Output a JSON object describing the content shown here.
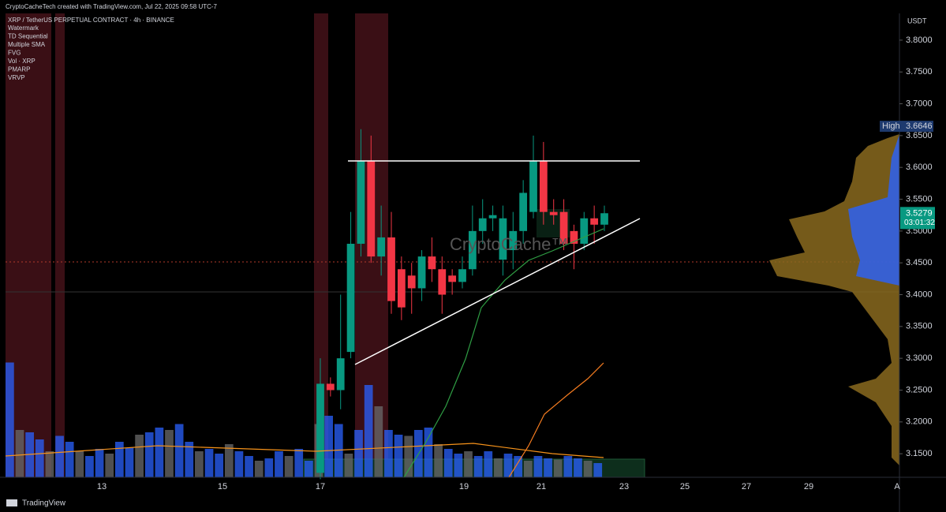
{
  "header": {
    "credit": "CryptoCacheTech created with TradingView.com, Jul 22, 2025 09:58 UTC-7"
  },
  "footer": {
    "brand": "TradingView"
  },
  "chart_data": {
    "type": "candlestick",
    "title": "XRP / TetherUS PERPETUAL CONTRACT · 4h · BINANCE",
    "indicators": [
      "Watermark",
      "TD Sequential",
      "Multiple SMA",
      "FVG",
      "Vol · XRP",
      "PMARP",
      "VRVP"
    ],
    "watermark": "CryptoCache™",
    "currency": "USDT",
    "up_color": "#089981",
    "down_color": "#f23645",
    "candles": {
      "open": [
        3.12,
        3.26,
        3.25,
        3.31,
        3.48,
        3.61,
        3.46,
        3.49,
        3.44,
        3.43,
        3.41,
        3.46,
        3.44,
        3.43,
        3.42,
        3.44,
        3.5,
        3.52,
        3.455,
        3.47,
        3.5,
        3.53,
        3.61,
        3.53,
        3.53,
        3.5,
        3.48,
        3.52,
        3.51
      ],
      "high": [
        3.3,
        3.27,
        3.4,
        3.53,
        3.66,
        3.65,
        3.54,
        3.53,
        3.46,
        3.45,
        3.47,
        3.49,
        3.46,
        3.44,
        3.46,
        3.54,
        3.55,
        3.54,
        3.54,
        3.53,
        3.58,
        3.65,
        3.64,
        3.55,
        3.55,
        3.51,
        3.53,
        3.54,
        3.54
      ],
      "low": [
        3.11,
        3.24,
        3.22,
        3.3,
        3.46,
        3.45,
        3.43,
        3.37,
        3.36,
        3.37,
        3.39,
        3.42,
        3.37,
        3.4,
        3.41,
        3.43,
        3.48,
        3.5,
        3.43,
        3.44,
        3.48,
        3.52,
        3.51,
        3.51,
        3.47,
        3.44,
        3.47,
        3.48,
        3.5
      ],
      "close": [
        3.26,
        3.25,
        3.3,
        3.48,
        3.61,
        3.46,
        3.49,
        3.39,
        3.38,
        3.41,
        3.46,
        3.44,
        3.4,
        3.42,
        3.44,
        3.5,
        3.52,
        3.525,
        3.52,
        3.5,
        3.56,
        3.61,
        3.53,
        3.525,
        3.48,
        3.48,
        3.52,
        3.51,
        3.528
      ]
    },
    "volume": {
      "color": "#2962ff",
      "values": [
        97,
        40,
        38,
        32,
        22,
        35,
        30,
        22,
        18,
        24,
        20,
        30,
        25,
        36,
        38,
        42,
        40,
        45,
        30,
        22,
        24,
        20,
        28,
        22,
        18,
        14,
        16,
        22,
        18,
        24,
        14,
        45,
        52,
        45,
        20,
        40,
        78,
        60,
        40,
        36,
        35,
        40,
        42,
        28,
        24,
        20,
        22,
        18,
        22,
        16,
        20,
        18,
        14,
        18,
        16,
        15,
        18,
        16,
        14,
        12
      ]
    },
    "ylim": [
      3.113,
      3.842
    ],
    "yticks": [
      {
        "value": 3.15,
        "label": "3.1500"
      },
      {
        "value": 3.2,
        "label": "3.2000"
      },
      {
        "value": 3.25,
        "label": "3.2500"
      },
      {
        "value": 3.3,
        "label": "3.3000"
      },
      {
        "value": 3.35,
        "label": "3.3500"
      },
      {
        "value": 3.4,
        "label": "3.4000"
      },
      {
        "value": 3.45,
        "label": "3.4500"
      },
      {
        "value": 3.5,
        "label": "3.5000"
      },
      {
        "value": 3.55,
        "label": "3.5500"
      },
      {
        "value": 3.6,
        "label": "3.6000"
      },
      {
        "value": 3.65,
        "label": "3.6500"
      },
      {
        "value": 3.7,
        "label": "3.7000"
      },
      {
        "value": 3.75,
        "label": "3.7500"
      },
      {
        "value": 3.8,
        "label": "3.8000"
      }
    ],
    "xticks": [
      "13",
      "15",
      "17",
      "19",
      "21",
      "23",
      "25",
      "27",
      "29",
      "A"
    ],
    "high_label": {
      "label": "High",
      "value": 3.6646
    },
    "last_price": {
      "value": 3.5279,
      "countdown": "03:01:32",
      "color": "#089981"
    }
  }
}
